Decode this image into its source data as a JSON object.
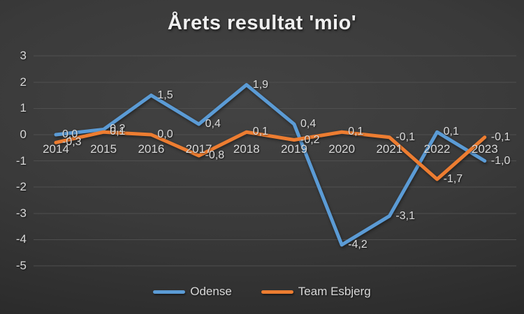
{
  "chart_data": {
    "type": "line",
    "title": "Årets resultat 'mio'",
    "categories": [
      "2014",
      "2015",
      "2016",
      "2017",
      "2018",
      "2019",
      "2020",
      "2021",
      "2022",
      "2023"
    ],
    "series": [
      {
        "name": "Odense",
        "color": "#5B9BD5",
        "values": [
          0.0,
          0.2,
          1.5,
          0.4,
          1.9,
          0.4,
          -4.2,
          -3.1,
          0.1,
          -1.0
        ],
        "labels": [
          "0,0",
          "0,2",
          "1,5",
          "0,4",
          "1,9",
          "0,4",
          "-4,2",
          "-3,1",
          "0,1",
          "-1,0"
        ]
      },
      {
        "name": "Team Esbjerg",
        "color": "#ED7D31",
        "values": [
          -0.3,
          0.1,
          0.0,
          -0.8,
          0.1,
          -0.2,
          0.1,
          -0.1,
          -1.7,
          -0.1
        ],
        "labels": [
          "-0,3",
          "0,1",
          "0,0",
          "-0,8",
          "0,1",
          "-0,2",
          "0,1",
          "-0,1",
          "-1,7",
          "-0,1"
        ]
      }
    ],
    "y_ticks": [
      "3",
      "2",
      "1",
      "0",
      "-1",
      "-2",
      "-3",
      "-4",
      "-5"
    ],
    "ylim": [
      -5,
      3
    ],
    "grid": true,
    "legend_position": "bottom",
    "background_color": "#383838",
    "text_color": "#d9d9d9"
  }
}
